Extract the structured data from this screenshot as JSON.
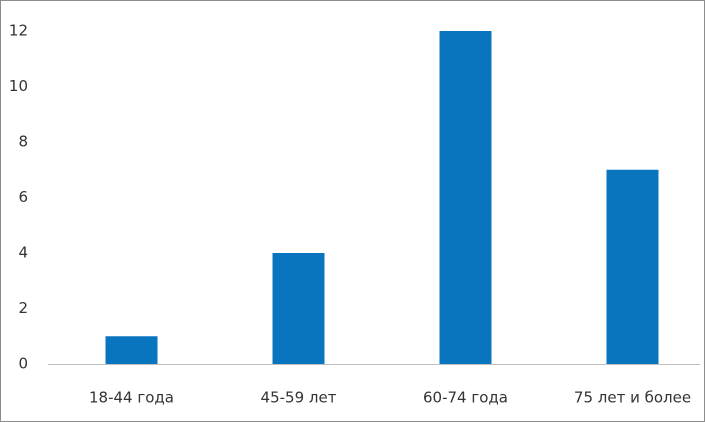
{
  "chart_data": {
    "type": "bar",
    "categories": [
      "18-44 года",
      "45-59 лет",
      "60-74 года",
      "75 лет и более"
    ],
    "values": [
      1,
      4,
      12,
      7
    ],
    "color": "#0a75bf",
    "ylim": [
      0,
      12
    ],
    "yticks": [
      0,
      2,
      4,
      6,
      8,
      10,
      12
    ],
    "grid": false
  }
}
